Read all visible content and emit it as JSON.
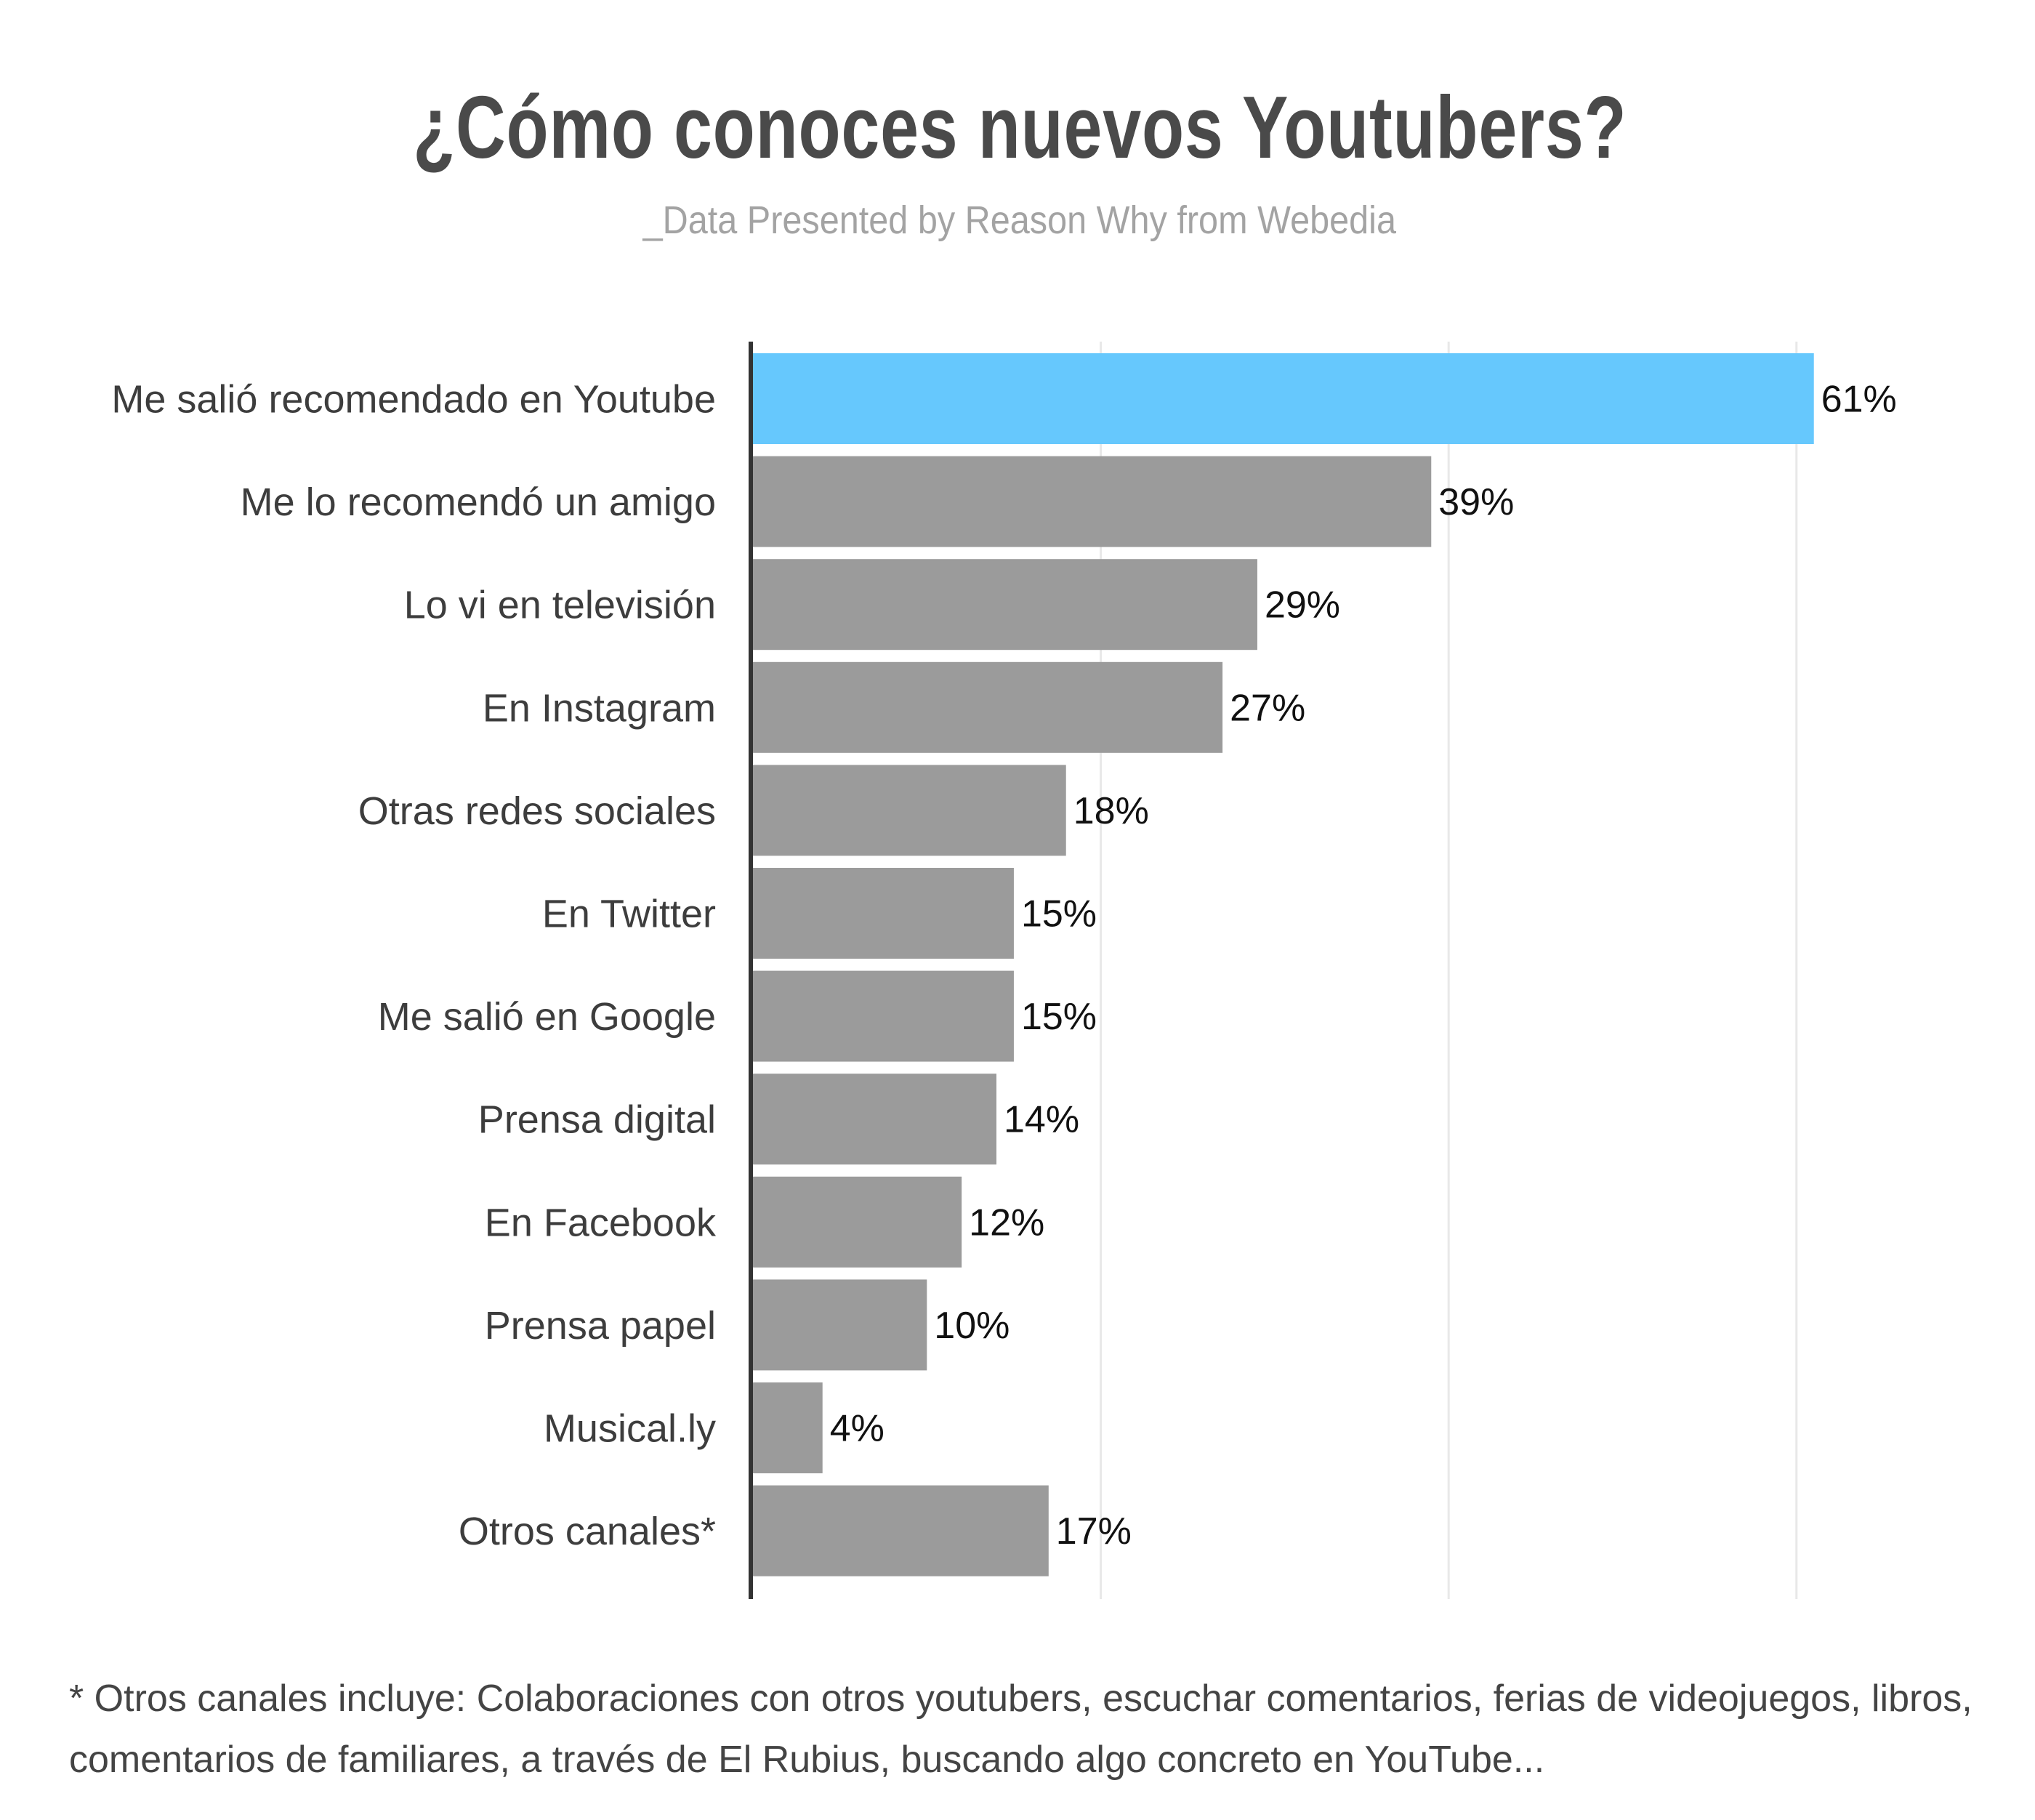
{
  "chart_data": {
    "type": "bar",
    "orientation": "horizontal",
    "title": "¿Cómo conoces nuevos Youtubers?",
    "subtitle": "_Data Presented by Reason Why from Webedia",
    "categories": [
      "Me salió recomendado en Youtube",
      "Me lo recomendó un amigo",
      "Lo vi en televisión",
      "En Instagram",
      "Otras redes sociales",
      "En Twitter",
      "Me salió en Google",
      "Prensa digital",
      "En Facebook",
      "Prensa papel",
      "Musical.ly",
      "Otros canales*"
    ],
    "values": [
      61,
      39,
      29,
      27,
      18,
      15,
      15,
      14,
      12,
      10,
      4,
      17
    ],
    "value_labels": [
      "61%",
      "39%",
      "29%",
      "27%",
      "18%",
      "15%",
      "15%",
      "14%",
      "12%",
      "10%",
      "4%",
      "17%"
    ],
    "xlim": [
      0,
      60
    ],
    "gridlines_at": [
      20,
      40,
      60
    ],
    "grid": true,
    "highlight_index": 0,
    "colors": {
      "highlight": "#66c8fd",
      "default": "#9b9b9b",
      "grid": "#e8e8e8",
      "axis": "#333333"
    },
    "footnote": "* Otros canales incluye: Colaboraciones con otros youtubers, escuchar comentarios, ferias de videojuegos, libros, comentarios de familiares, a través de El Rubius, buscando algo concreto en YouTube..."
  }
}
